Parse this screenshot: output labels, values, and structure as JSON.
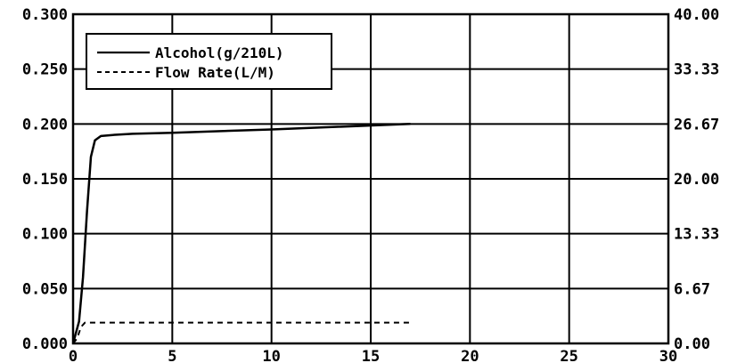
{
  "chart_data": {
    "type": "line",
    "x_ticks": [
      "0",
      "5",
      "10",
      "15",
      "20",
      "25",
      "30"
    ],
    "y_left_ticks": [
      "0.000",
      "0.050",
      "0.100",
      "0.150",
      "0.200",
      "0.250",
      "0.300"
    ],
    "y_right_ticks": [
      "0.00",
      "6.67",
      "13.33",
      "20.00",
      "26.67",
      "33.33",
      "40.00"
    ],
    "xlim": [
      0,
      30
    ],
    "ylim_left": [
      0,
      0.3
    ],
    "ylim_right": [
      0,
      40
    ],
    "grid": true,
    "legend_position": "top-left",
    "series": [
      {
        "name": "Alcohol(g/210L)",
        "axis": "left",
        "style": "solid",
        "x": [
          0,
          0.3,
          0.5,
          0.7,
          0.9,
          1.1,
          1.4,
          2,
          3,
          5,
          10,
          17
        ],
        "y": [
          0.0,
          0.02,
          0.06,
          0.12,
          0.17,
          0.185,
          0.189,
          0.19,
          0.191,
          0.192,
          0.195,
          0.2
        ]
      },
      {
        "name": "Flow Rate(L/M)",
        "axis": "right",
        "style": "dashed",
        "x": [
          0,
          0.2,
          0.4,
          0.6,
          1,
          17
        ],
        "y": [
          0,
          0.6,
          2.0,
          2.53,
          2.53,
          2.53
        ]
      }
    ],
    "colors": {
      "line": "#000000",
      "grid": "#000000",
      "background": "#ffffff"
    }
  }
}
